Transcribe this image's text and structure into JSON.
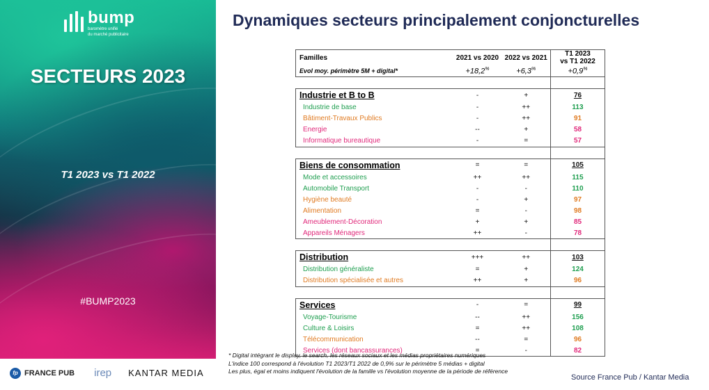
{
  "left": {
    "logo_word": "bump",
    "logo_tag_1": "baromètre unifié",
    "logo_tag_2": "du marché publicitaire",
    "title": "SECTEURS 2023",
    "period": "T1 2023 vs T1 2022",
    "hashtag": "#BUMP2023"
  },
  "footer": {
    "france_pub": "FRANCE PUB",
    "france_pub_mark": "fp",
    "irep": "irep",
    "kantar": "KANTAR MEDIA"
  },
  "title": "Dynamiques secteurs principalement conjoncturelles",
  "table": {
    "header": {
      "families_label": "Familles",
      "col2": "2021 vs 2020",
      "col3": "2022 vs 2021",
      "col4_line1": "T1 2023",
      "col4_line2": "vs T1 2022",
      "evol_label": "Evol moy.  périmètre 5M + digital*",
      "evol_col2": "+18,2%",
      "evol_col3": "+6,3%",
      "evol_col4": "+0,9%"
    },
    "families": [
      {
        "name": "Industrie et B to B",
        "c2": "-",
        "c3": "+",
        "c4": "76",
        "rows": [
          {
            "name": "Industrie de base",
            "c2": "-",
            "c3": "++",
            "c4": "113",
            "color": "#1e9e4f"
          },
          {
            "name": "Bâtiment-Travaux Publics",
            "c2": "-",
            "c3": "++",
            "c4": "91",
            "color": "#e07b22"
          },
          {
            "name": "Energie",
            "c2": "--",
            "c3": "+",
            "c4": "58",
            "color": "#e0287a"
          },
          {
            "name": "Informatique bureautique",
            "c2": "-",
            "c3": "=",
            "c4": "57",
            "color": "#e0287a"
          }
        ]
      },
      {
        "name": "Biens de consommation",
        "c2": "=",
        "c3": "=",
        "c4": "105",
        "rows": [
          {
            "name": "Mode et accessoires",
            "c2": "++",
            "c3": "++",
            "c4": "115",
            "color": "#1e9e4f"
          },
          {
            "name": "Automobile Transport",
            "c2": "-",
            "c3": "-",
            "c4": "110",
            "color": "#1e9e4f"
          },
          {
            "name": "Hygiène beauté",
            "c2": "-",
            "c3": "+",
            "c4": "97",
            "color": "#e07b22"
          },
          {
            "name": "Alimentation",
            "c2": "=",
            "c3": "-",
            "c4": "98",
            "color": "#e07b22"
          },
          {
            "name": "Ameublement-Décoration",
            "c2": "+",
            "c3": "+",
            "c4": "85",
            "color": "#e0287a"
          },
          {
            "name": "Appareils Ménagers",
            "c2": "++",
            "c3": "-",
            "c4": "78",
            "color": "#e0287a"
          }
        ]
      },
      {
        "name": "Distribution",
        "c2": "+++",
        "c3": "++",
        "c4": "103",
        "rows": [
          {
            "name": "Distribution généraliste",
            "c2": "=",
            "c3": "+",
            "c4": "124",
            "color": "#1e9e4f"
          },
          {
            "name": "Distribution spécialisée et autres",
            "c2": "++",
            "c3": "+",
            "c4": "96",
            "color": "#e07b22"
          }
        ]
      },
      {
        "name": "Services",
        "c2": "-",
        "c3": "=",
        "c4": "99",
        "rows": [
          {
            "name": "Voyage-Tourisme",
            "c2": "--",
            "c3": "++",
            "c4": "156",
            "color": "#1e9e4f"
          },
          {
            "name": "Culture & Loisirs",
            "c2": "=",
            "c3": "++",
            "c4": "108",
            "color": "#1e9e4f"
          },
          {
            "name": "Télécommunication",
            "c2": "--",
            "c3": "=",
            "c4": "96",
            "color": "#e07b22"
          },
          {
            "name": "Services (dont bancassurances)",
            "c2": "=",
            "c3": "-",
            "c4": "82",
            "color": "#e0287a"
          }
        ]
      }
    ]
  },
  "notes": [
    "* Digital intégrant le display, le search, les réseaux sociaux et les médias propriétaires numériques",
    "L'indice 100 correspond à l'évolution T1 2023/T1 2022 de 0,9% sur le périmètre 5 médias + digital",
    "Les plus, égal et moins indiquent l'évolution de la famille vs l'évolution moyenne de la période de référence"
  ],
  "source": "Source France Pub / Kantar Media"
}
